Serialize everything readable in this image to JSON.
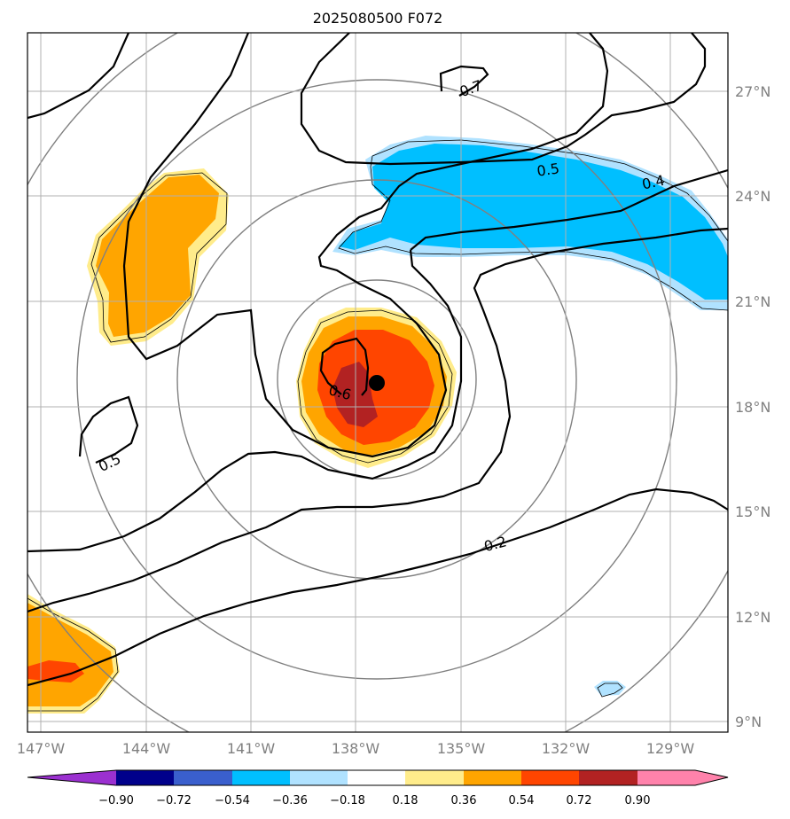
{
  "title": "2025080500 F072",
  "longitude_labels": [
    "147°W",
    "144°W",
    "141°W",
    "138°W",
    "135°W",
    "132°W",
    "129°W"
  ],
  "latitude_labels": [
    "27°N",
    "24°N",
    "21°N",
    "18°N",
    "15°N",
    "12°N",
    "9°N"
  ],
  "contour_labels": {
    "c07": "0.7",
    "c05a": "0.5",
    "c04": "0.4",
    "c06": "0.6",
    "c05b": "0.5",
    "c02": "0.2"
  },
  "colorbar": {
    "tick_labels": [
      "−0.90",
      "−0.72",
      "−0.54",
      "−0.36",
      "−0.18",
      "0.18",
      "0.36",
      "0.54",
      "0.72",
      "0.90"
    ],
    "colors": [
      "#9b30d0",
      "#00008b",
      "#3a5fcd",
      "#00bfff",
      "#b0e2ff",
      "#ffffff",
      "#ffec8b",
      "#ffa500",
      "#ff4500",
      "#b22222",
      "#ff82ab",
      "#ff82ab"
    ]
  },
  "fill_colors": {
    "neg_light": "#b0e2ff",
    "neg_mid": "#00bfff",
    "pos_light": "#ffec8b",
    "pos_mid": "#ffa500",
    "pos_high": "#ff4500",
    "pos_top": "#b22222"
  },
  "storm_center_marker": "filled-circle"
}
